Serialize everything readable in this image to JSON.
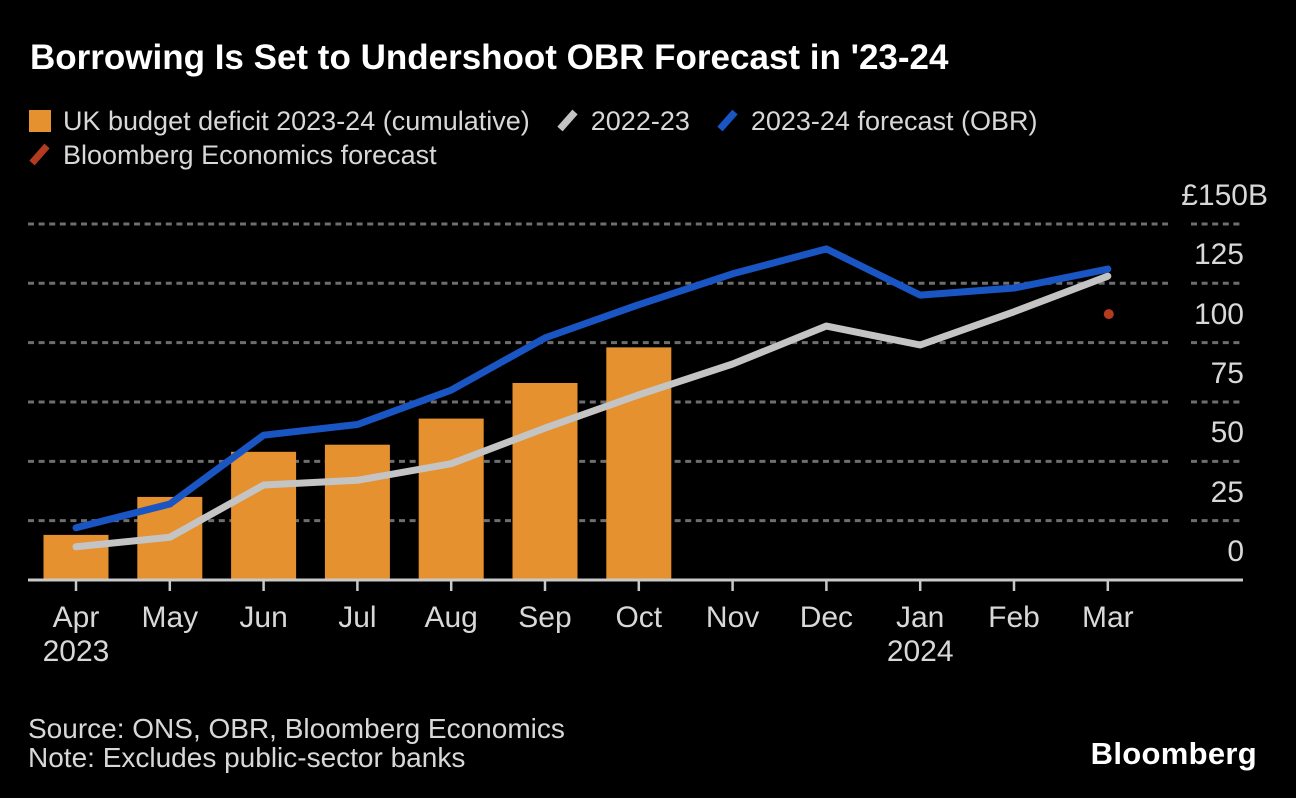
{
  "header": {
    "title": "Borrowing Is Set to Undershoot OBR Forecast in '23-24"
  },
  "legend": {
    "items": [
      {
        "label": "UK budget deficit 2023-24 (cumulative)",
        "marker": "square",
        "color": "#E5912F"
      },
      {
        "label": "2022-23",
        "marker": "slash",
        "color": "#C4C4C4"
      },
      {
        "label": "2023-24 forecast (OBR)",
        "marker": "slash",
        "color": "#1A55C4"
      },
      {
        "label": "Bloomberg Economics forecast",
        "marker": "slash",
        "color": "#B33B20"
      }
    ]
  },
  "chart_data": {
    "type": "bar+line",
    "title": "Borrowing Is Set to Undershoot OBR Forecast in '23-24",
    "categories": [
      "Apr",
      "May",
      "Jun",
      "Jul",
      "Aug",
      "Sep",
      "Oct",
      "Nov",
      "Dec",
      "Jan",
      "Feb",
      "Mar"
    ],
    "category_year_labels": [
      {
        "index": 0,
        "text": "2023"
      },
      {
        "index": 9,
        "text": "2024"
      }
    ],
    "bar_series": {
      "name": "UK budget deficit 2023-24 (cumulative)",
      "color": "#E5912F",
      "values": [
        19,
        35,
        54,
        57,
        68,
        83,
        98,
        null,
        null,
        null,
        null,
        null
      ]
    },
    "line_series": [
      {
        "name": "2022-23",
        "color": "#C4C4C4",
        "values": [
          14,
          18,
          40,
          42,
          49,
          64,
          78,
          91,
          107,
          99,
          113,
          128
        ]
      },
      {
        "name": "2023-24 forecast (OBR)",
        "color": "#1A55C4",
        "values": [
          22,
          32,
          61,
          65.5,
          80,
          102,
          116,
          129,
          139.5,
          120,
          123,
          131
        ]
      }
    ],
    "point_series": {
      "name": "Bloomberg Economics forecast",
      "color": "#B33B20",
      "category": "Mar",
      "value": 112
    },
    "y_axis": {
      "top_label": "£150B",
      "ticks": [
        0,
        25,
        50,
        75,
        100,
        125,
        150
      ],
      "min": 0,
      "max": 150,
      "gridlines": "dotted"
    },
    "layout": {
      "background": "#000000",
      "grid_color": "#6E6E6E",
      "axis_color": "#C9C9C9",
      "legend_position": "top"
    }
  },
  "footer": {
    "source": "Source: ONS, OBR, Bloomberg Economics",
    "note": "Note: Excludes public-sector banks",
    "logo": "Bloomberg"
  }
}
